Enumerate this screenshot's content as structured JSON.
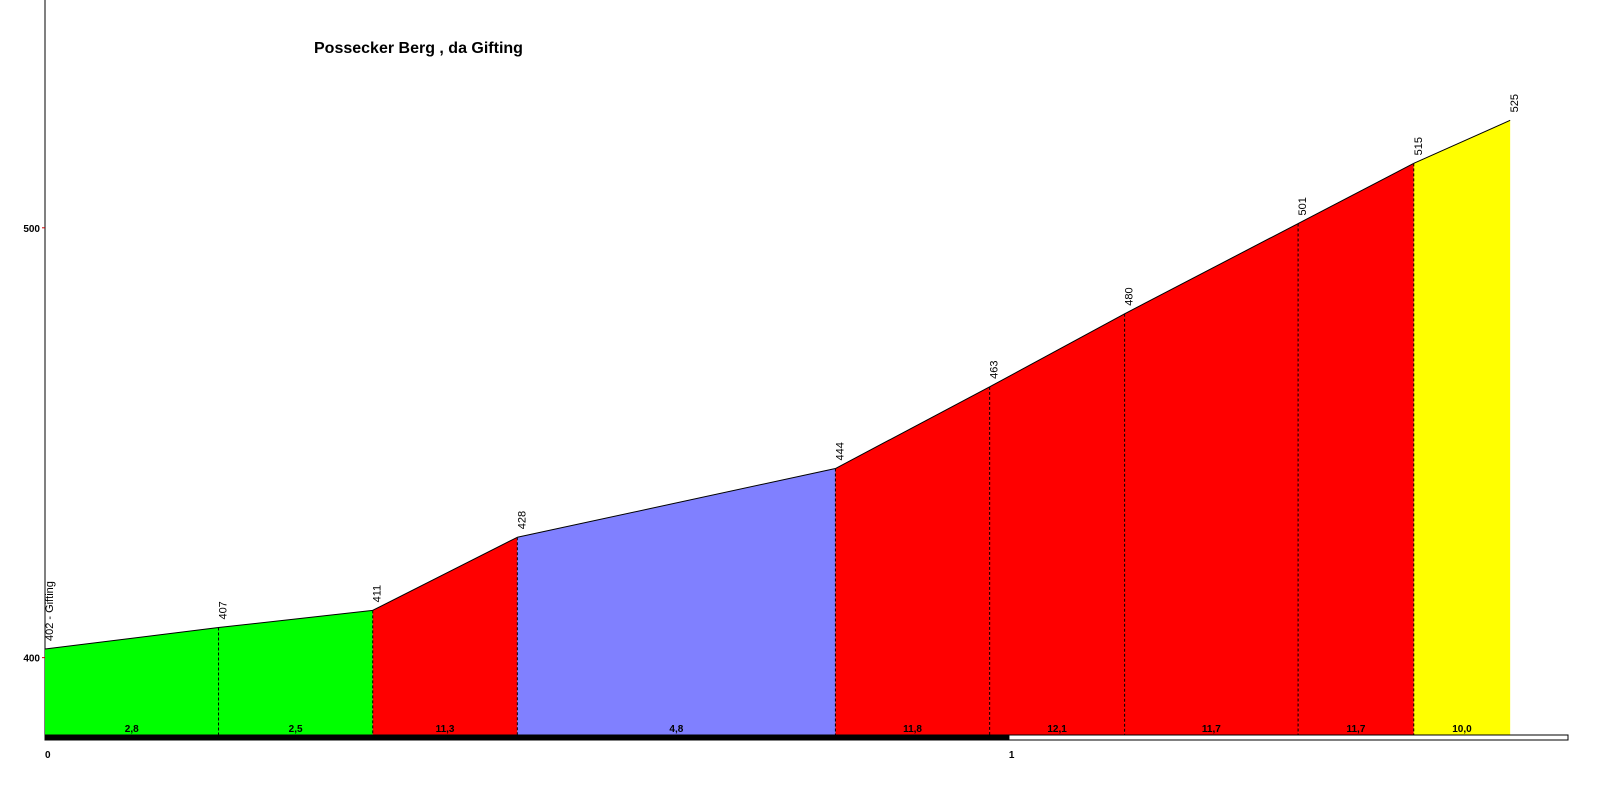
{
  "chart_data": {
    "type": "elevation-profile",
    "title": "Possecker Berg , da Gifting",
    "x": [
      0,
      0.18,
      0.34,
      0.49,
      0.82,
      0.98,
      1.12,
      1.3,
      1.42,
      1.52
    ],
    "values": [
      402,
      407,
      411,
      428,
      444,
      463,
      480,
      501,
      515,
      525
    ],
    "value_labels": [
      "402 - Gifting",
      "407",
      "411",
      "428",
      "444",
      "463",
      "480",
      "501",
      "515",
      "525"
    ],
    "segments": {
      "gradients": [
        2.8,
        2.5,
        11.3,
        4.8,
        11.8,
        12.1,
        11.7,
        11.7,
        10.0
      ],
      "gradient_labels": [
        "2,8",
        "2,5",
        "11,3",
        "4,8",
        "11,8",
        "12,1",
        "11,7",
        "11,7",
        "10,0"
      ],
      "colors": [
        "#00ff00",
        "#00ff00",
        "#ff0000",
        "#8080ff",
        "#ff0000",
        "#ff0000",
        "#ff0000",
        "#ff0000",
        "#ffff00"
      ]
    },
    "xlim": [
      0,
      1.58
    ],
    "xticks": [
      0,
      1
    ],
    "ylim": [
      382,
      553
    ],
    "yticks": [
      400,
      500
    ]
  }
}
